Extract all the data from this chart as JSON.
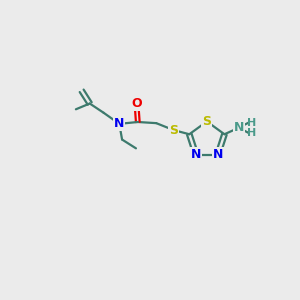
{
  "background_color": "#ebebeb",
  "bond_color": "#3d7a6d",
  "N_color": "#0000ee",
  "O_color": "#ee0000",
  "S_color": "#bbbb00",
  "NH_color": "#4a9a8a",
  "figsize": [
    3.0,
    3.0
  ],
  "dpi": 100,
  "xlim": [
    0,
    10
  ],
  "ylim": [
    0,
    10
  ]
}
